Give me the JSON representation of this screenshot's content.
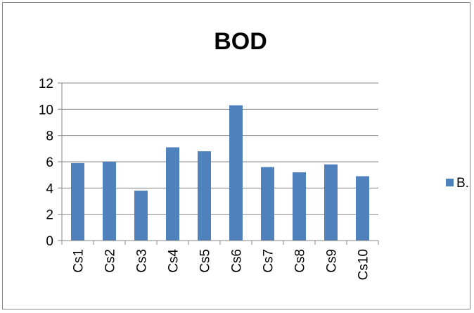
{
  "chart_data": {
    "type": "bar",
    "title": "BOD",
    "xlabel": "",
    "ylabel": "",
    "categories": [
      "Cs1",
      "Cs2",
      "Cs3",
      "Cs4",
      "Cs5",
      "Cs6",
      "Cs7",
      "Cs8",
      "Cs9",
      "Cs10"
    ],
    "series": [
      {
        "name": "B.",
        "values": [
          5.9,
          6.0,
          3.8,
          7.1,
          6.8,
          10.3,
          5.6,
          5.2,
          5.8,
          4.9
        ],
        "color": "#4f81bd"
      }
    ],
    "ylim": [
      0,
      12
    ],
    "yticks": [
      0,
      2,
      4,
      6,
      8,
      10,
      12
    ],
    "grid": "horizontal",
    "legend_position": "right",
    "colors": {
      "bar": "#4f81bd",
      "grid": "#868686",
      "axis": "#868686",
      "border": "#868686"
    }
  }
}
